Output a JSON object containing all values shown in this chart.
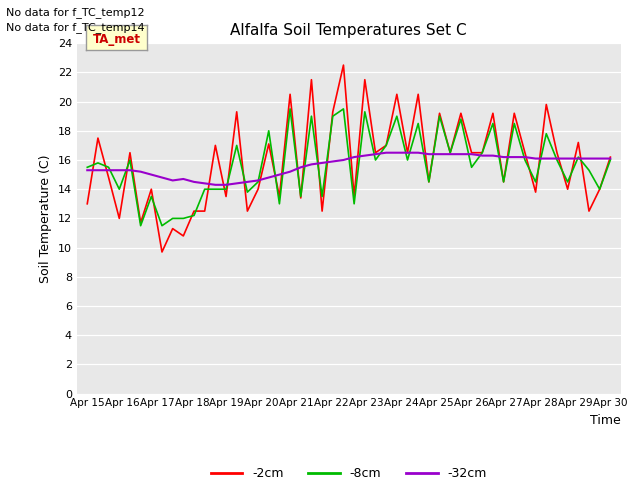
{
  "title": "Alfalfa Soil Temperatures Set C",
  "ylabel": "Soil Temperature (C)",
  "xlabel": "Time",
  "no_data_text": [
    "No data for f_TC_temp12",
    "No data for f_TC_temp14"
  ],
  "ta_met_label": "TA_met",
  "legend_labels": [
    "-2cm",
    "-8cm",
    "-32cm"
  ],
  "legend_colors": [
    "#ff0000",
    "#00bb00",
    "#9900cc"
  ],
  "line_colors": [
    "#ff0000",
    "#00bb00",
    "#9900cc"
  ],
  "fig_bg_color": "#ffffff",
  "plot_bg_color": "#e8e8e8",
  "grid_color": "#ffffff",
  "ylim": [
    0,
    24
  ],
  "yticks": [
    0,
    2,
    4,
    6,
    8,
    10,
    12,
    14,
    16,
    18,
    20,
    22,
    24
  ],
  "x_labels": [
    "Apr 15",
    "Apr 16",
    "Apr 17",
    "Apr 18",
    "Apr 19",
    "Apr 20",
    "Apr 21",
    "Apr 22",
    "Apr 23",
    "Apr 24",
    "Apr 25",
    "Apr 26",
    "Apr 27",
    "Apr 28",
    "Apr 29",
    "Apr 30"
  ],
  "red_data": [
    13.0,
    17.5,
    14.8,
    12.0,
    16.5,
    11.7,
    14.0,
    9.7,
    11.3,
    10.8,
    12.5,
    12.5,
    17.0,
    13.5,
    19.3,
    12.5,
    14.0,
    17.1,
    13.5,
    20.5,
    13.4,
    21.5,
    12.5,
    19.3,
    22.5,
    13.5,
    21.5,
    16.5,
    17.0,
    20.5,
    16.5,
    20.5,
    14.5,
    19.2,
    16.5,
    19.2,
    16.5,
    16.5,
    19.2,
    14.5,
    19.2,
    16.5,
    13.8,
    19.8,
    16.5,
    14.0,
    17.2,
    12.5,
    14.0,
    16.2
  ],
  "green_data": [
    15.5,
    15.8,
    15.5,
    14.0,
    16.0,
    11.5,
    13.5,
    11.5,
    12.0,
    12.0,
    12.2,
    14.0,
    14.0,
    14.0,
    17.0,
    13.8,
    14.5,
    18.0,
    13.0,
    19.5,
    13.5,
    19.0,
    13.5,
    19.0,
    19.5,
    13.0,
    19.3,
    16.0,
    17.0,
    19.0,
    16.0,
    18.5,
    14.5,
    19.0,
    16.5,
    18.8,
    15.5,
    16.5,
    18.5,
    14.5,
    18.5,
    16.0,
    14.5,
    17.8,
    16.0,
    14.5,
    16.2,
    15.3,
    14.0,
    16.0
  ],
  "purple_data": [
    15.3,
    15.3,
    15.3,
    15.3,
    15.3,
    15.2,
    15.0,
    14.8,
    14.6,
    14.7,
    14.5,
    14.4,
    14.3,
    14.3,
    14.4,
    14.5,
    14.6,
    14.8,
    15.0,
    15.2,
    15.5,
    15.7,
    15.8,
    15.9,
    16.0,
    16.2,
    16.3,
    16.4,
    16.5,
    16.5,
    16.5,
    16.5,
    16.4,
    16.4,
    16.4,
    16.4,
    16.4,
    16.3,
    16.3,
    16.2,
    16.2,
    16.2,
    16.1,
    16.1,
    16.1,
    16.1,
    16.1,
    16.1,
    16.1,
    16.1
  ]
}
